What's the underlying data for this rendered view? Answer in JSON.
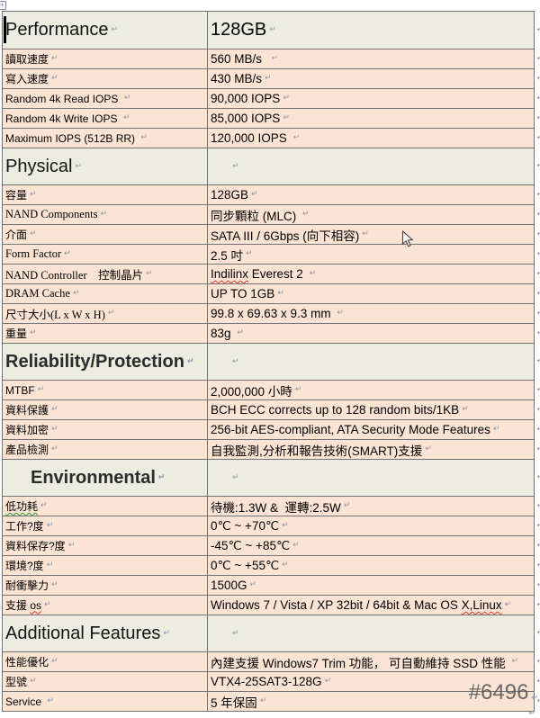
{
  "colors": {
    "header_row_bg": "#ecece1",
    "data_row_bg": "#fbe4d3",
    "table_border": "#737373",
    "paragraph_mark": "#8b94a6",
    "squiggle_red": "#e0392e",
    "squiggle_green": "#2e9e3c",
    "watermark_gray": "#555555"
  },
  "watermark": "#6496",
  "table": {
    "sections": [
      {
        "header": {
          "label": "Performance",
          "value": "128GB",
          "bold": false,
          "indent": false,
          "caret": true
        },
        "rows": [
          {
            "label": "讀取速度",
            "label_font": "cjk",
            "value": "560 MB/s  "
          },
          {
            "label": "寫入速度",
            "label_font": "cjk",
            "value": "430 MB/s"
          },
          {
            "label": "Random 4k Read IOPS ",
            "label_font": "sans",
            "value": "90,000 IOPS"
          },
          {
            "label": "Random 4k Write IOPS ",
            "label_font": "sans",
            "value": "85,000 IOPS"
          },
          {
            "label": "Maximum IOPS (512B RR) ",
            "label_font": "sans",
            "value": "120,000 IOPS "
          }
        ]
      },
      {
        "header": {
          "label": "Physical",
          "value": "",
          "bold": false,
          "indent": false,
          "caret": false
        },
        "rows": [
          {
            "label": "容量",
            "label_font": "cjk",
            "value": "128GB"
          },
          {
            "label": "NAND Components",
            "label_font": "serif",
            "value": "同步顆粒 (MLC) "
          },
          {
            "label": "介面",
            "label_font": "cjk",
            "value": "SATA III / 6Gbps (向下相容)"
          },
          {
            "label": "Form Factor",
            "label_font": "serif",
            "value": "2.5 吋"
          },
          {
            "label": "NAND Controller　控制晶片",
            "label_font": "serif",
            "value": [
              {
                "t": "Indilinx",
                "s": "red"
              },
              {
                "t": " Everest 2 "
              }
            ]
          },
          {
            "label": "DRAM Cache",
            "label_font": "serif",
            "value": "UP TO 1GB"
          },
          {
            "label": "尺寸大小(L x W x H)",
            "label_font": "serif",
            "value": "99.8 x 69.63 x 9.3 mm "
          },
          {
            "label": "重量",
            "label_font": "cjk",
            "value": "83g "
          }
        ]
      },
      {
        "header": {
          "label": "Reliability/Protection",
          "value": "",
          "bold": true,
          "indent": false,
          "caret": false
        },
        "rows": [
          {
            "label": "MTBF",
            "label_font": "sans",
            "value": "2,000,000 小時"
          },
          {
            "label": "資料保護",
            "label_font": "cjk",
            "value": "BCH ECC corrects up to 128 random bits/1KB"
          },
          {
            "label": "資料加密",
            "label_font": "cjk",
            "value": "256-bit AES-compliant, ATA Security Mode Features"
          },
          {
            "label": "產品檢測",
            "label_font": "cjk",
            "value": "自我監測,分析和報告技術(SMART)支援"
          }
        ]
      },
      {
        "header": {
          "label": "Environmental",
          "value": "",
          "bold": true,
          "indent": true,
          "caret": false
        },
        "rows": [
          {
            "label": [
              {
                "t": "低功耗",
                "s": "green"
              }
            ],
            "label_font": "cjk",
            "value": "待機:1.3W &  運轉:2.5W"
          },
          {
            "label": "工作?度",
            "label_font": "cjk",
            "value": "0℃ ~ +70℃"
          },
          {
            "label": "資料保存?度",
            "label_font": "cjk",
            "value": "-45℃ ~ +85℃"
          },
          {
            "label": "環境?度",
            "label_font": "cjk",
            "value": "0℃ ~ +55℃"
          },
          {
            "label": "耐衝擊力",
            "label_font": "cjk",
            "value": "1500G"
          },
          {
            "label": [
              {
                "t": "支援 "
              },
              {
                "t": "os",
                "s": "red"
              }
            ],
            "label_font": "cjk",
            "value": [
              {
                "t": "Windows 7 / Vista / XP 32bit / 64bit & Mac OS "
              },
              {
                "t": "X,Linux",
                "s": "red"
              }
            ]
          }
        ]
      },
      {
        "header": {
          "label": "Additional Features",
          "value": "",
          "bold": false,
          "indent": false,
          "caret": false
        },
        "rows": [
          {
            "label": "性能優化",
            "label_font": "cjk",
            "value": "內建支援 Windows7 Trim 功能， 可自動維持 SSD 性能 "
          },
          {
            "label": "型號",
            "label_font": "cjk",
            "value": "VTX4-25SAT3-128G"
          },
          {
            "label": "Service ",
            "label_font": "sans",
            "value": "5 年保固"
          }
        ]
      }
    ]
  }
}
